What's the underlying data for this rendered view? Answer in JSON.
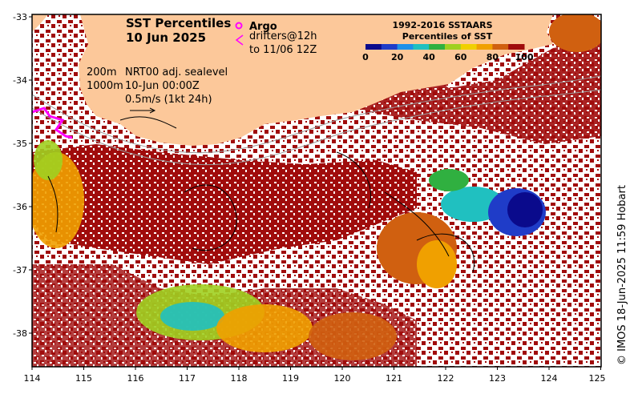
{
  "map": {
    "title_line1": "SST Percentiles",
    "title_line2": "10 Jun 2025",
    "argo_label": "Argo",
    "drifter_label1": "drifters@12h",
    "drifter_label2": "to 11/06 12Z",
    "depth_label_200": "200m",
    "depth_label_1000": "1000m",
    "nrt_label": "NRT00 adj. sealevel",
    "time_label": "10-Jun 00:00Z",
    "scale_label": "0.5m/s (1kt 24h)",
    "colorbar_title1": "1992-2016 SSTAARS",
    "colorbar_title2": "Percentiles of SST",
    "colorbar_ticks": [
      "0",
      "20",
      "40",
      "60",
      "80",
      "100"
    ],
    "colorbar_colors": [
      "#0a0a8c",
      "#1f3cc8",
      "#1e90e8",
      "#20c0c0",
      "#30b040",
      "#a0d020",
      "#f0d000",
      "#f0a000",
      "#d06010",
      "#a00c0c"
    ],
    "credit": "© IMOS 18-Jun-2025 11:59 Hobart",
    "x_ticks": [
      "114",
      "115",
      "116",
      "117",
      "118",
      "119",
      "120",
      "121",
      "122",
      "123",
      "124",
      "125"
    ],
    "y_ticks": [
      "-33",
      "-34",
      "-35",
      "-36",
      "-37",
      "-38"
    ],
    "land_color": "#fcc89a",
    "warm_color": "#a00c0c"
  }
}
